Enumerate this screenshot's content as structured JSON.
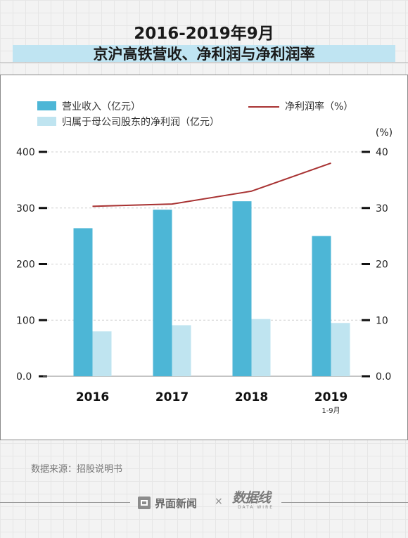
{
  "header": {
    "title_line1": "2016-2019年9月",
    "title_line2": "京沪高铁营收、净利润与净利润率"
  },
  "chart_data": {
    "type": "bar",
    "categories": [
      "2016",
      "2017",
      "2018",
      "2019"
    ],
    "category_sublabels": [
      "",
      "",
      "",
      "1-9月"
    ],
    "series": [
      {
        "name": "营业收入（亿元）",
        "kind": "bar",
        "axis": "left",
        "color": "#4db6d6",
        "values": [
          264,
          297,
          312,
          250
        ]
      },
      {
        "name": "归属于母公司股东的净利润（亿元）",
        "kind": "bar",
        "axis": "left",
        "color": "#bfe4f0",
        "values": [
          80,
          91,
          102,
          95
        ]
      },
      {
        "name": "净利润率（%）",
        "kind": "line",
        "axis": "right",
        "color": "#a83232",
        "values": [
          30.3,
          30.7,
          33.0,
          38.0
        ]
      }
    ],
    "left_axis": {
      "ylim": [
        0,
        400
      ],
      "ticks": [
        "0.0",
        "100",
        "200",
        "300",
        "400"
      ]
    },
    "right_axis": {
      "ylim": [
        0,
        40
      ],
      "ticks": [
        "0.0",
        "10",
        "20",
        "30",
        "40"
      ],
      "unit_label": "(%)"
    },
    "grid": true,
    "legend_position": "top"
  },
  "footer": {
    "source": "数据来源：招股说明书",
    "brand": "界面新闻",
    "separator": "×",
    "partner": "数据线",
    "partner_sub": "DATA WIRE"
  }
}
